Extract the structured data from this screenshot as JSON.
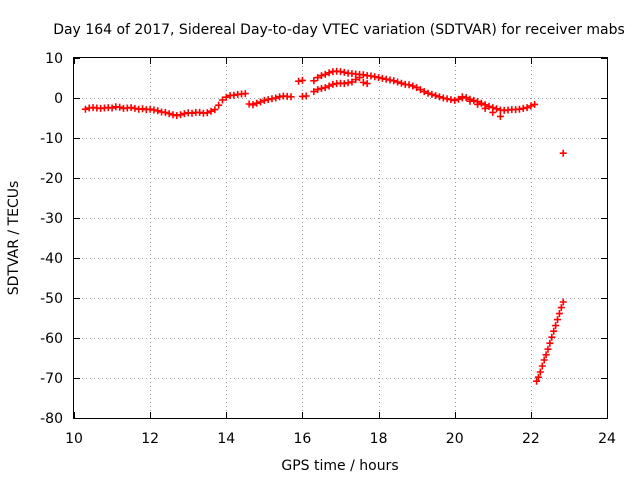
{
  "chart_data": {
    "type": "scatter",
    "title": "Day 164 of 2017, Sidereal Day-to-day VTEC variation (SDTVAR) for receiver mabs",
    "xlabel": "GPS time / hours",
    "ylabel": "SDTVAR / TECUs",
    "xlim": [
      10,
      24
    ],
    "ylim": [
      -80,
      10
    ],
    "xticks": [
      10,
      12,
      14,
      16,
      18,
      20,
      22,
      24
    ],
    "yticks": [
      10,
      0,
      -10,
      -20,
      -30,
      -40,
      -50,
      -60,
      -70,
      -80
    ],
    "xtick_labels": [
      "10",
      "12",
      "14",
      "16",
      "18",
      "20",
      "22",
      "24"
    ],
    "ytick_labels": [
      "10",
      "0",
      "-10",
      "-20",
      "-30",
      "-40",
      "-50",
      "-60",
      "-70",
      "-80"
    ],
    "grid": true,
    "marker": "plus",
    "color": "#ff0000",
    "series": [
      {
        "name": "SDTVAR",
        "points": [
          [
            10.3,
            -2.8
          ],
          [
            10.4,
            -2.5
          ],
          [
            10.5,
            -2.4
          ],
          [
            10.6,
            -2.5
          ],
          [
            10.7,
            -2.6
          ],
          [
            10.8,
            -2.5
          ],
          [
            10.9,
            -2.4
          ],
          [
            11.0,
            -2.5
          ],
          [
            11.1,
            -2.2
          ],
          [
            11.2,
            -2.3
          ],
          [
            11.3,
            -2.6
          ],
          [
            11.4,
            -2.5
          ],
          [
            11.5,
            -2.4
          ],
          [
            11.6,
            -2.6
          ],
          [
            11.7,
            -2.8
          ],
          [
            11.8,
            -2.7
          ],
          [
            11.9,
            -2.9
          ],
          [
            12.0,
            -2.8
          ],
          [
            12.1,
            -3.0
          ],
          [
            12.2,
            -3.2
          ],
          [
            12.3,
            -3.5
          ],
          [
            12.4,
            -3.6
          ],
          [
            12.5,
            -3.9
          ],
          [
            12.6,
            -4.2
          ],
          [
            12.7,
            -4.4
          ],
          [
            12.8,
            -4.2
          ],
          [
            12.9,
            -3.9
          ],
          [
            13.0,
            -3.7
          ],
          [
            13.1,
            -3.8
          ],
          [
            13.2,
            -3.6
          ],
          [
            13.3,
            -3.6
          ],
          [
            13.4,
            -3.8
          ],
          [
            13.5,
            -3.7
          ],
          [
            13.6,
            -3.3
          ],
          [
            13.7,
            -2.9
          ],
          [
            13.8,
            -1.8
          ],
          [
            13.9,
            -0.5
          ],
          [
            14.0,
            0.2
          ],
          [
            14.1,
            0.6
          ],
          [
            14.2,
            0.7
          ],
          [
            14.3,
            0.9
          ],
          [
            14.4,
            1.0
          ],
          [
            14.5,
            1.1
          ],
          [
            14.6,
            -1.5
          ],
          [
            14.7,
            -1.7
          ],
          [
            14.8,
            -1.3
          ],
          [
            14.9,
            -1.0
          ],
          [
            15.0,
            -0.6
          ],
          [
            15.1,
            -0.4
          ],
          [
            15.2,
            -0.2
          ],
          [
            15.3,
            0.0
          ],
          [
            15.4,
            0.3
          ],
          [
            15.5,
            0.5
          ],
          [
            15.6,
            0.4
          ],
          [
            15.7,
            0.3
          ],
          [
            15.9,
            4.2
          ],
          [
            16.0,
            4.4
          ],
          [
            16.0,
            0.4
          ],
          [
            16.1,
            0.5
          ],
          [
            16.3,
            4.3
          ],
          [
            16.4,
            5.1
          ],
          [
            16.5,
            5.6
          ],
          [
            16.6,
            5.9
          ],
          [
            16.7,
            6.3
          ],
          [
            16.8,
            6.6
          ],
          [
            16.9,
            6.7
          ],
          [
            17.0,
            6.6
          ],
          [
            17.1,
            6.4
          ],
          [
            17.2,
            6.2
          ],
          [
            17.3,
            6.1
          ],
          [
            17.4,
            6.0
          ],
          [
            17.5,
            5.9
          ],
          [
            17.6,
            5.8
          ],
          [
            17.7,
            5.6
          ],
          [
            17.8,
            5.5
          ],
          [
            17.9,
            5.3
          ],
          [
            18.0,
            5.1
          ],
          [
            18.1,
            4.9
          ],
          [
            18.2,
            4.7
          ],
          [
            18.3,
            4.5
          ],
          [
            18.4,
            4.3
          ],
          [
            18.5,
            4.0
          ],
          [
            18.6,
            3.7
          ],
          [
            18.7,
            3.4
          ],
          [
            18.8,
            3.3
          ],
          [
            18.9,
            3.0
          ],
          [
            19.0,
            2.6
          ],
          [
            19.1,
            2.1
          ],
          [
            19.2,
            1.6
          ],
          [
            19.3,
            1.2
          ],
          [
            19.4,
            0.9
          ],
          [
            19.5,
            0.6
          ],
          [
            19.6,
            0.3
          ],
          [
            19.7,
            0.0
          ],
          [
            19.8,
            -0.2
          ],
          [
            19.9,
            -0.4
          ],
          [
            20.0,
            -0.6
          ],
          [
            20.1,
            -0.3
          ],
          [
            20.2,
            0.3
          ],
          [
            20.3,
            0.1
          ],
          [
            20.4,
            -0.3
          ],
          [
            20.5,
            -0.6
          ],
          [
            20.6,
            -0.9
          ],
          [
            20.7,
            -1.3
          ],
          [
            20.8,
            -1.7
          ],
          [
            20.9,
            -2.1
          ],
          [
            21.0,
            -2.4
          ],
          [
            21.1,
            -2.7
          ],
          [
            21.2,
            -3.0
          ],
          [
            21.3,
            -3.1
          ],
          [
            21.4,
            -3.0
          ],
          [
            21.5,
            -2.9
          ],
          [
            21.6,
            -2.9
          ],
          [
            21.7,
            -2.8
          ],
          [
            21.8,
            -2.6
          ],
          [
            21.9,
            -2.4
          ],
          [
            22.0,
            -2.0
          ],
          [
            22.1,
            -1.6
          ],
          [
            16.3,
            1.6
          ],
          [
            16.4,
            2.1
          ],
          [
            16.5,
            2.4
          ],
          [
            16.6,
            2.6
          ],
          [
            16.7,
            3.0
          ],
          [
            16.8,
            3.4
          ],
          [
            16.9,
            3.6
          ],
          [
            17.0,
            3.7
          ],
          [
            17.1,
            3.6
          ],
          [
            17.2,
            3.8
          ],
          [
            17.3,
            4.0
          ],
          [
            17.4,
            4.6
          ],
          [
            17.5,
            5.1
          ],
          [
            17.6,
            3.9
          ],
          [
            17.7,
            3.6
          ],
          [
            20.2,
            0.0
          ],
          [
            20.4,
            -0.8
          ],
          [
            20.6,
            -1.6
          ],
          [
            20.8,
            -2.6
          ],
          [
            21.0,
            -3.6
          ],
          [
            21.2,
            -4.6
          ],
          [
            22.85,
            -13.8
          ],
          [
            22.15,
            -70.8
          ],
          [
            22.2,
            -69.8
          ],
          [
            22.25,
            -68.5
          ],
          [
            22.3,
            -67.0
          ],
          [
            22.35,
            -65.5
          ],
          [
            22.4,
            -64.2
          ],
          [
            22.45,
            -62.8
          ],
          [
            22.5,
            -61.3
          ],
          [
            22.55,
            -59.8
          ],
          [
            22.6,
            -58.3
          ],
          [
            22.65,
            -56.9
          ],
          [
            22.7,
            -55.4
          ],
          [
            22.75,
            -53.9
          ],
          [
            22.8,
            -52.4
          ],
          [
            22.85,
            -51.0
          ]
        ]
      }
    ]
  }
}
